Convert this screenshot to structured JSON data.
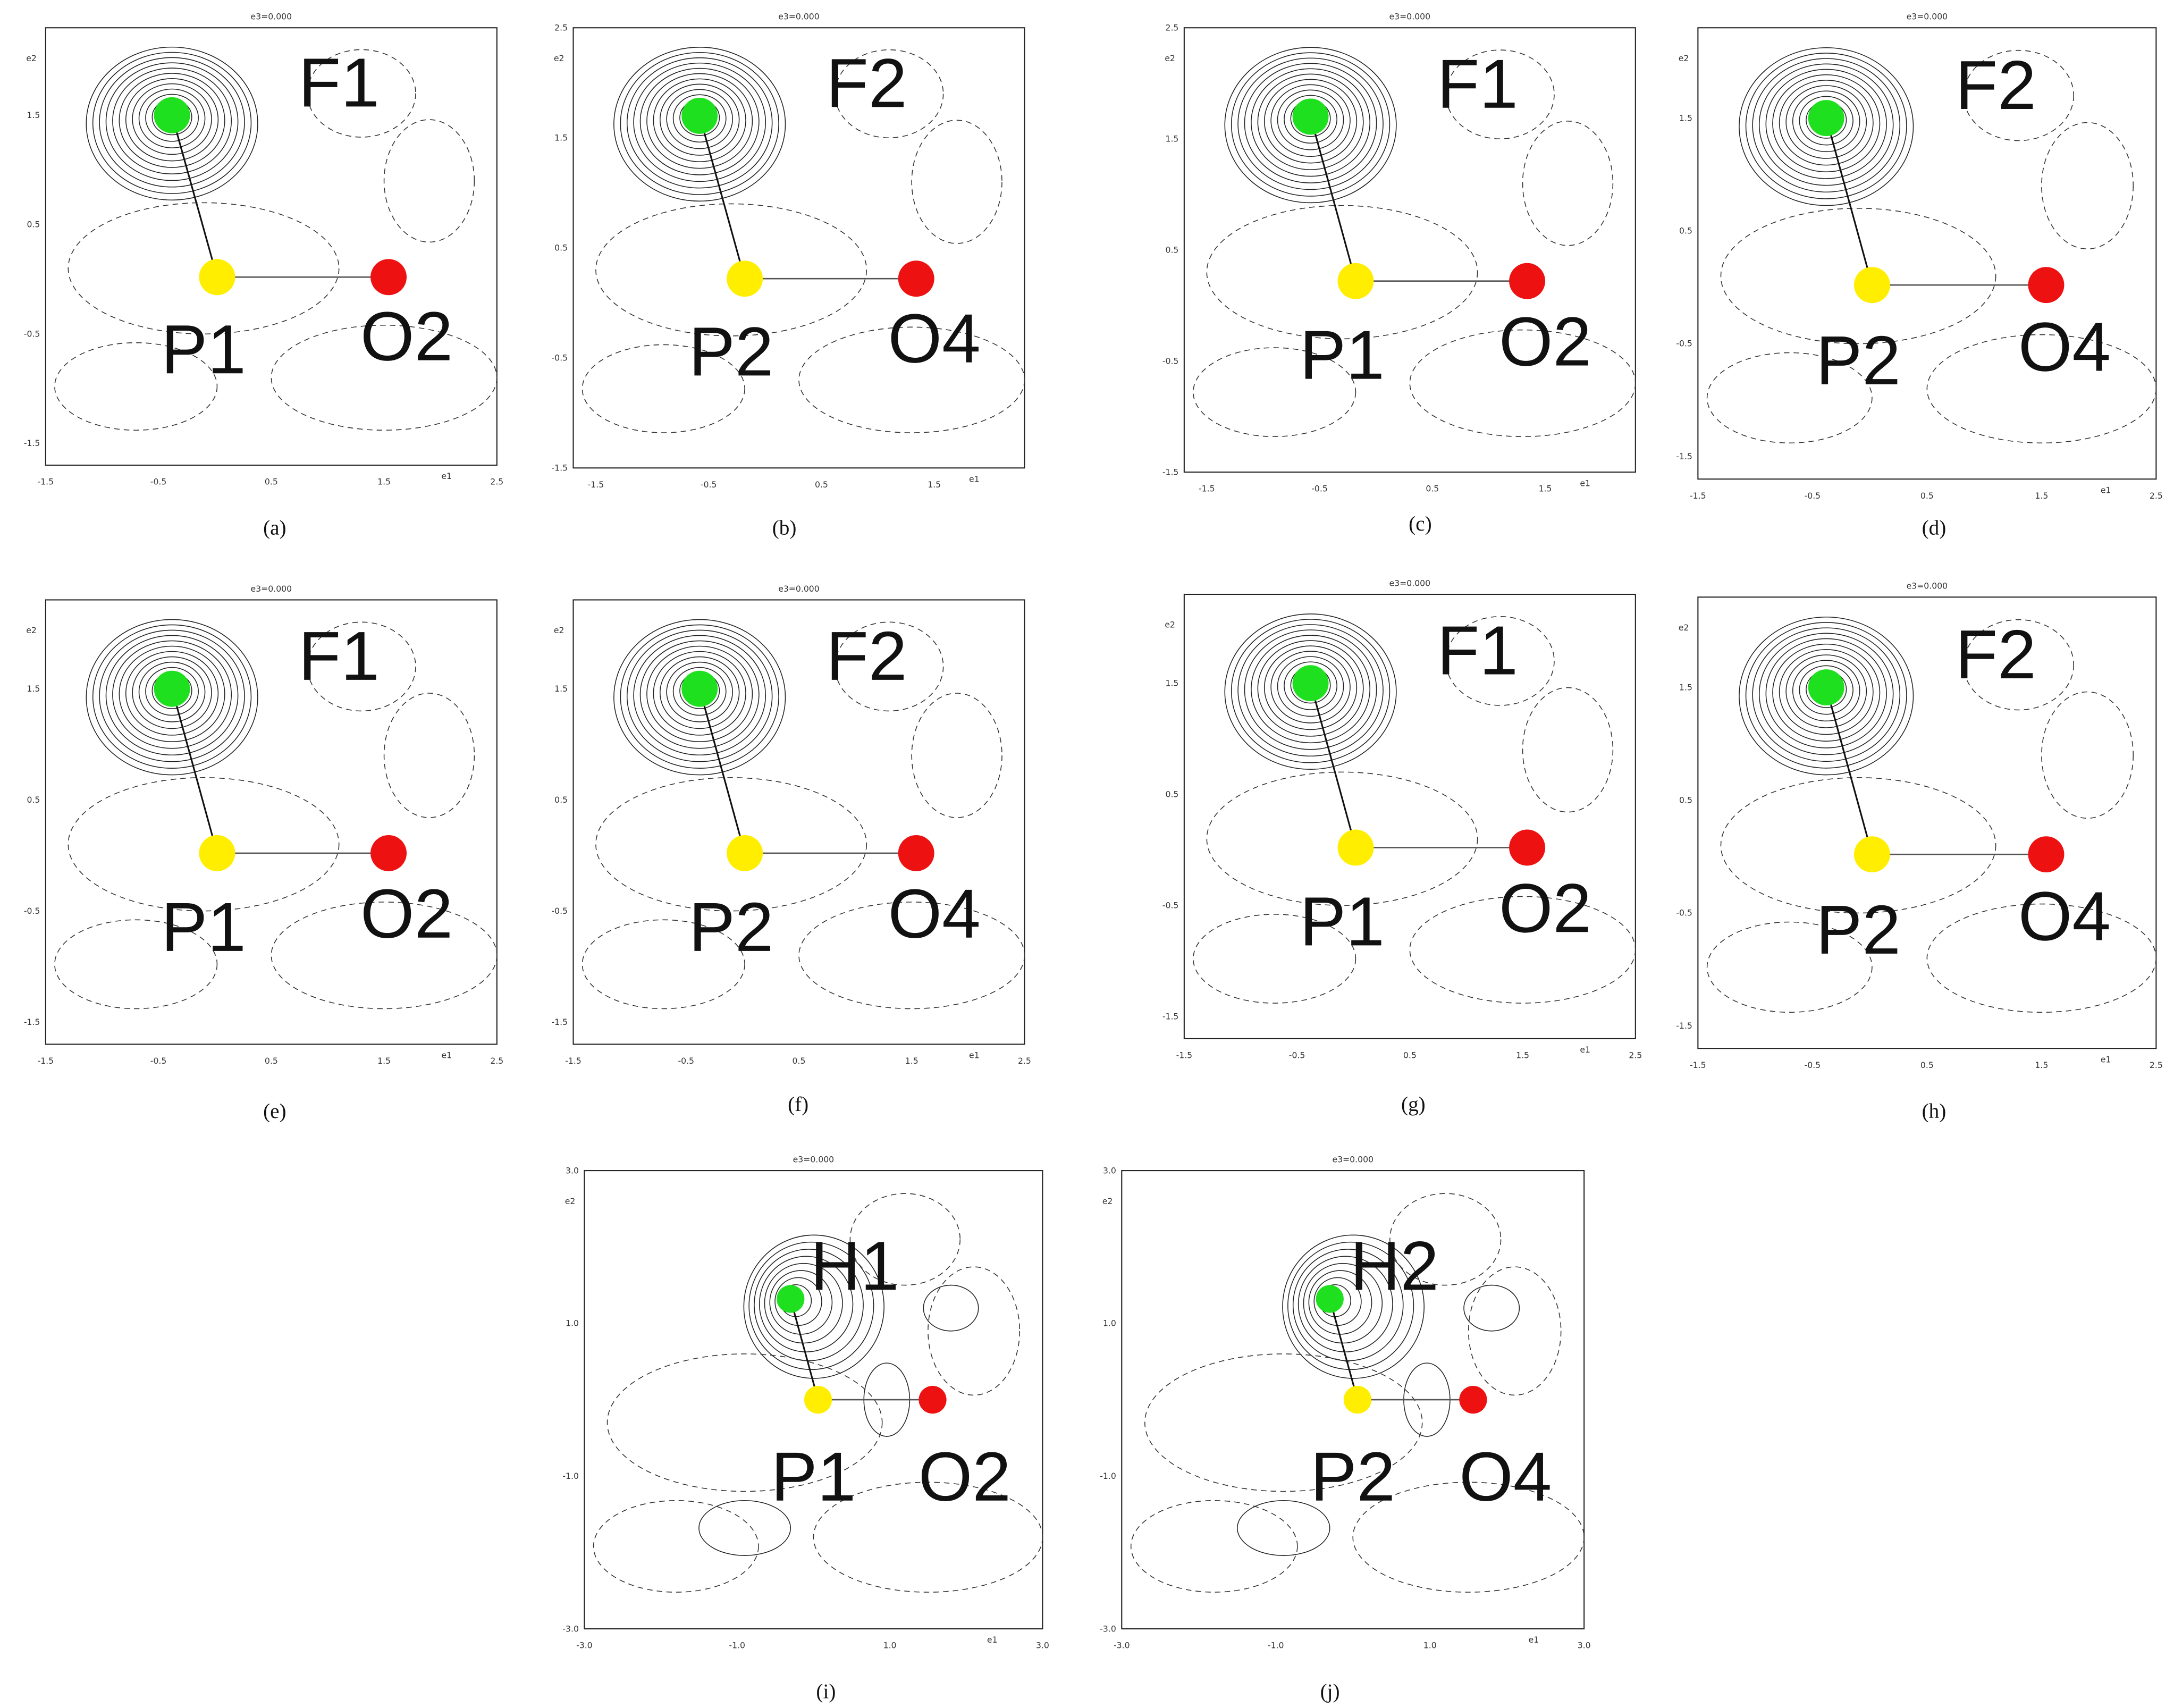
{
  "panels": [
    {
      "title": "e3=0.000",
      "x_label": "e1",
      "y_label": "e2",
      "xticks": [
        "-1.5",
        "-0.5",
        "0.5",
        "1.5",
        "2.5"
      ],
      "yticks": [
        "1.5",
        "0.5",
        "-0.5",
        "-1.5"
      ],
      "atoms": [
        "F1",
        "P1",
        "O2"
      ],
      "caption": "(a)"
    },
    {
      "title": "e3=0.000",
      "x_label": "e1",
      "y_label": "e2",
      "xticks": [
        "-1.5",
        "-0.5",
        "0.5",
        "1.5"
      ],
      "yticks": [
        "2.5",
        "1.5",
        "0.5",
        "-0.5",
        "-1.5"
      ],
      "atoms": [
        "F2",
        "P2",
        "O4"
      ],
      "caption": "(b)"
    },
    {
      "title": "e3=0.000",
      "x_label": "e1",
      "y_label": "e2",
      "xticks": [
        "-1.5",
        "-0.5",
        "0.5",
        "1.5"
      ],
      "yticks": [
        "2.5",
        "1.5",
        "0.5",
        "-0.5",
        "-1.5"
      ],
      "atoms": [
        "F1",
        "P1",
        "O2"
      ],
      "caption": "(c)"
    },
    {
      "title": "e3=0.000",
      "x_label": "e1",
      "y_label": "e2",
      "xticks": [
        "-1.5",
        "-0.5",
        "0.5",
        "1.5",
        "2.5"
      ],
      "yticks": [
        "1.5",
        "0.5",
        "-0.5",
        "-1.5"
      ],
      "atoms": [
        "F2",
        "P2",
        "O4"
      ],
      "caption": "(d)"
    },
    {
      "title": "e3=0.000",
      "x_label": "e1",
      "y_label": "e2",
      "xticks": [
        "-1.5",
        "-0.5",
        "0.5",
        "1.5",
        "2.5"
      ],
      "yticks": [
        "1.5",
        "0.5",
        "-0.5",
        "-1.5"
      ],
      "atoms": [
        "F1",
        "P1",
        "O2"
      ],
      "caption": "(e)"
    },
    {
      "title": "e3=0.000",
      "x_label": "e1",
      "y_label": "e2",
      "xticks": [
        "-1.5",
        "-0.5",
        "0.5",
        "1.5",
        "2.5"
      ],
      "yticks": [
        "1.5",
        "0.5",
        "-0.5",
        "-1.5"
      ],
      "atoms": [
        "F2",
        "P2",
        "O4"
      ],
      "caption": "(f)"
    },
    {
      "title": "e3=0.000",
      "x_label": "e1",
      "y_label": "e2",
      "xticks": [
        "-1.5",
        "-0.5",
        "0.5",
        "1.5",
        "2.5"
      ],
      "yticks": [
        "1.5",
        "0.5",
        "-0.5",
        "-1.5"
      ],
      "atoms": [
        "F1",
        "P1",
        "O2"
      ],
      "caption": "(g)"
    },
    {
      "title": "e3=0.000",
      "x_label": "e1",
      "y_label": "e2",
      "xticks": [
        "-1.5",
        "-0.5",
        "0.5",
        "1.5",
        "2.5"
      ],
      "yticks": [
        "1.5",
        "0.5",
        "-0.5",
        "-1.5"
      ],
      "atoms": [
        "F2",
        "P2",
        "O4"
      ],
      "caption": "(h)"
    },
    {
      "title": "e3=0.000",
      "x_label": "e1",
      "y_label": "e2",
      "xticks": [
        "-3.0",
        "-1.0",
        "1.0",
        "3.0"
      ],
      "yticks": [
        "3.0",
        "1.0",
        "-1.0",
        "-3.0"
      ],
      "atoms": [
        "H1",
        "P1",
        "O2"
      ],
      "caption": "(i)"
    },
    {
      "title": "e3=0.000",
      "x_label": "e1",
      "y_label": "e2",
      "xticks": [
        "-3.0",
        "-1.0",
        "1.0",
        "3.0"
      ],
      "yticks": [
        "3.0",
        "1.0",
        "-1.0",
        "-3.0"
      ],
      "atoms": [
        "H2",
        "P2",
        "O4"
      ],
      "caption": "(j)"
    }
  ]
}
